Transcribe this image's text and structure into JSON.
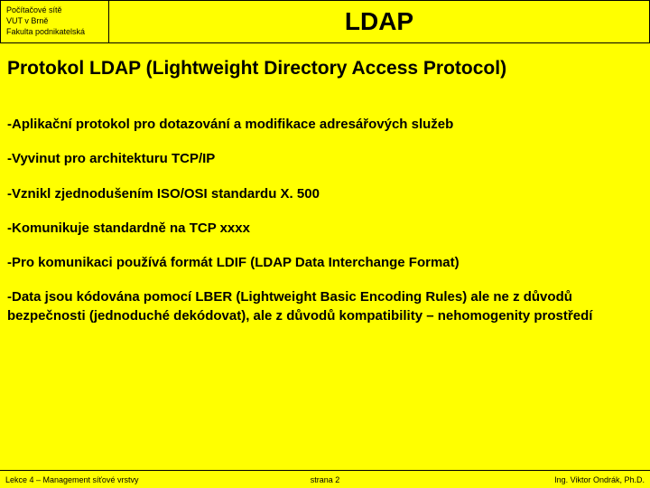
{
  "header": {
    "institution_line1": "Počítačové sítě",
    "institution_line2": "VUT v Brně",
    "institution_line3": "Fakulta podnikatelská",
    "title": "LDAP"
  },
  "subtitle": "Protokol LDAP (Lightweight Directory Access Protocol)",
  "bullets": [
    "-Aplikační protokol pro dotazování a modifikace adresářových služeb",
    "-Vyvinut pro architekturu TCP/IP",
    "-Vznikl zjednodušením ISO/OSI standardu X. 500",
    "-Komunikuje standardně na TCP xxxx",
    "-Pro komunikaci používá formát LDIF (LDAP Data Interchange Format)",
    "-Data jsou kódována pomocí LBER (Lightweight Basic Encoding Rules) ale ne z důvodů bezpečnosti (jednoduché dekódovat), ale z důvodů kompatibility – nehomogenity prostředí"
  ],
  "footer": {
    "left": "Lekce 4 – Management síťové vrstvy",
    "center": "strana 2",
    "right": "Ing. Viktor Ondrák, Ph.D."
  },
  "colors": {
    "background": "#ffff00",
    "border": "#000000",
    "text": "#000000"
  }
}
